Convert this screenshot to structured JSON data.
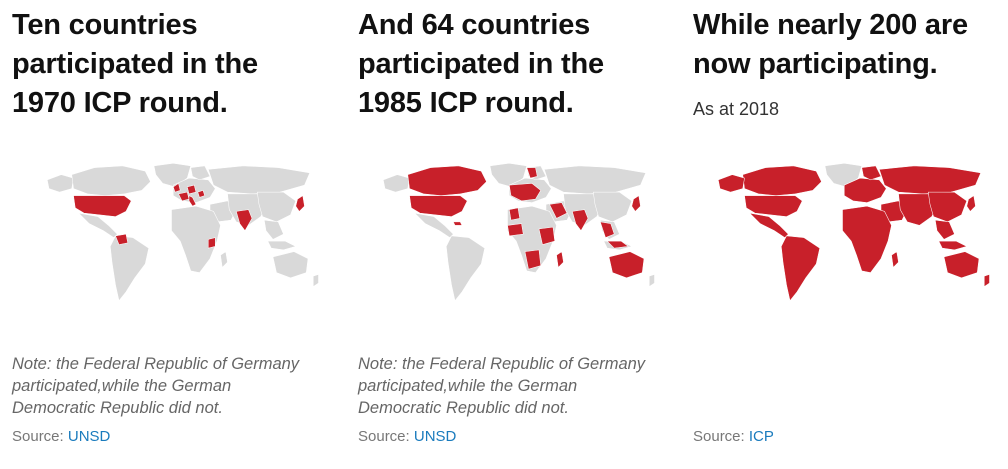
{
  "colors": {
    "participating": "#c8202a",
    "not_participating": "#d9d9d9",
    "source_link": "#1a7bbd"
  },
  "panels": [
    {
      "title": "Ten countries\nparticipated in the\n1970 ICP round.",
      "subtitle": "",
      "note": "Note: the Federal Republic of Germany\nparticipated,while the German\nDemocratic Republic did not.",
      "source_label": "Source:",
      "source_link": "UNSD",
      "participating_regions": [
        "usa",
        "uk",
        "germany",
        "france",
        "hungary",
        "italy",
        "india",
        "japan",
        "kenya",
        "colombia"
      ]
    },
    {
      "title": "And 64 countries\nparticipated in the\n1985 ICP round.",
      "subtitle": "",
      "note": "Note: the Federal Republic of Germany\nparticipated,while the German\nDemocratic Republic did not.",
      "source_label": "Source:",
      "source_link": "UNSD",
      "participating_regions": [
        "usa",
        "canada",
        "western-europe",
        "north-africa",
        "west-africa",
        "east-africa",
        "southern-africa",
        "middle-east",
        "india",
        "southeast-asia",
        "japan",
        "australia",
        "caribbean"
      ]
    },
    {
      "title": "While nearly 200 are\nnow participating.",
      "subtitle": "As at 2018",
      "note": "",
      "source_label": "Source:",
      "source_link": "ICP",
      "participating_regions": [
        "north-america",
        "south-america",
        "europe",
        "russia",
        "africa",
        "asia",
        "australia"
      ]
    }
  ]
}
